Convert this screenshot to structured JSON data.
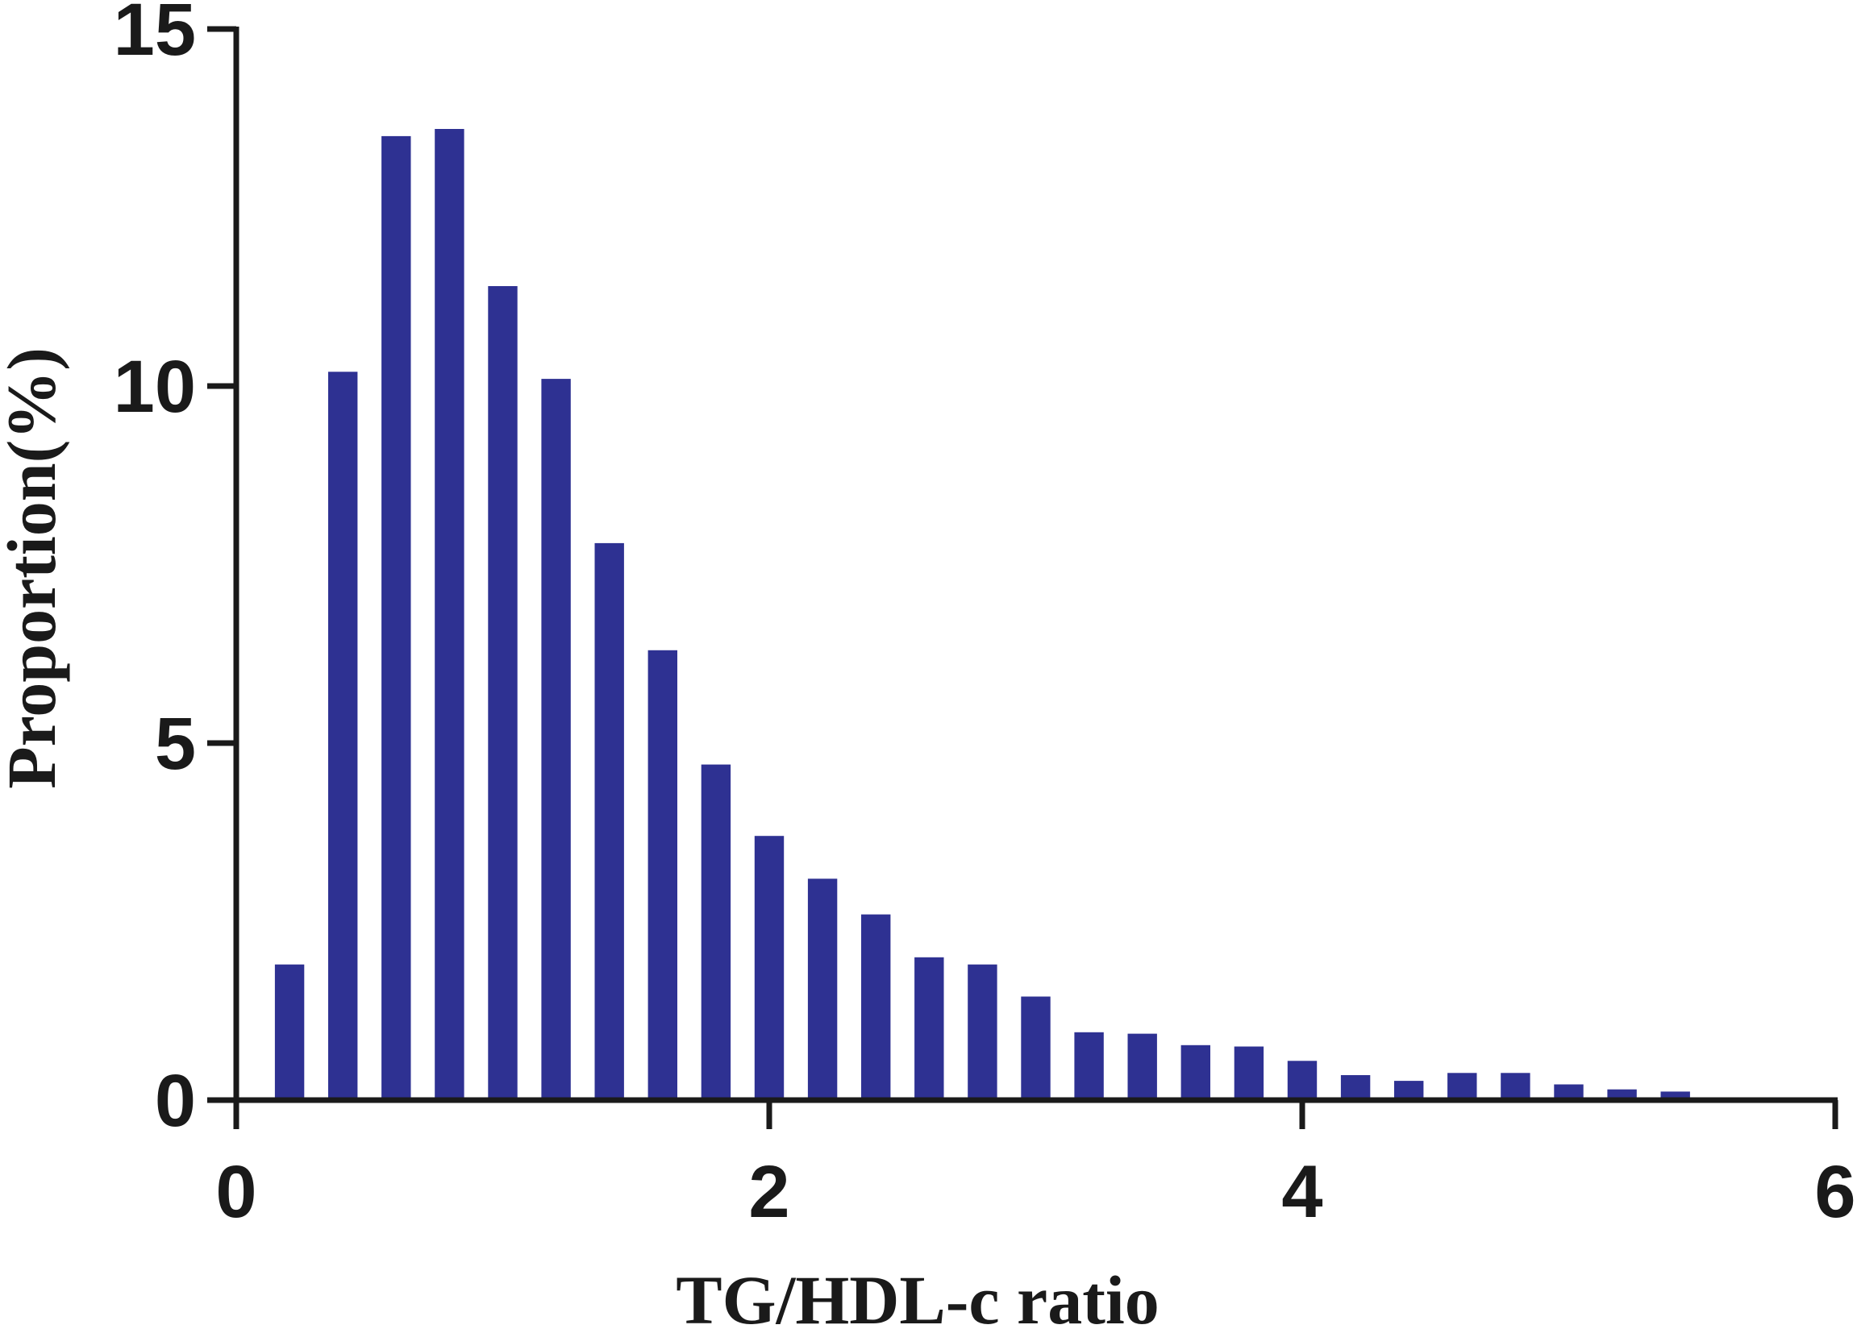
{
  "chart_data": {
    "type": "bar",
    "xlabel": "TG/HDL-c ratio",
    "ylabel": "Proportion(%)",
    "xlim": [
      0,
      6
    ],
    "ylim": [
      0,
      15
    ],
    "x_ticks": [
      "0",
      "2",
      "4",
      "6"
    ],
    "y_ticks": [
      "0",
      "5",
      "10",
      "15"
    ],
    "bar_color": "#2e3192",
    "bar_width": 0.11,
    "grid": false,
    "legend": "none",
    "x": [
      0.2,
      0.4,
      0.6,
      0.8,
      1.0,
      1.2,
      1.4,
      1.6,
      1.8,
      2.0,
      2.2,
      2.4,
      2.6,
      2.8,
      3.0,
      3.2,
      3.4,
      3.6,
      3.8,
      4.0,
      4.2,
      4.4,
      4.6,
      4.8,
      5.0,
      5.2,
      5.4
    ],
    "values": [
      1.9,
      10.2,
      13.5,
      13.6,
      11.4,
      10.1,
      7.8,
      6.3,
      4.7,
      3.7,
      3.1,
      2.6,
      2.0,
      1.9,
      1.45,
      0.95,
      0.93,
      0.77,
      0.75,
      0.55,
      0.35,
      0.27,
      0.38,
      0.38,
      0.22,
      0.15,
      0.12
    ]
  }
}
